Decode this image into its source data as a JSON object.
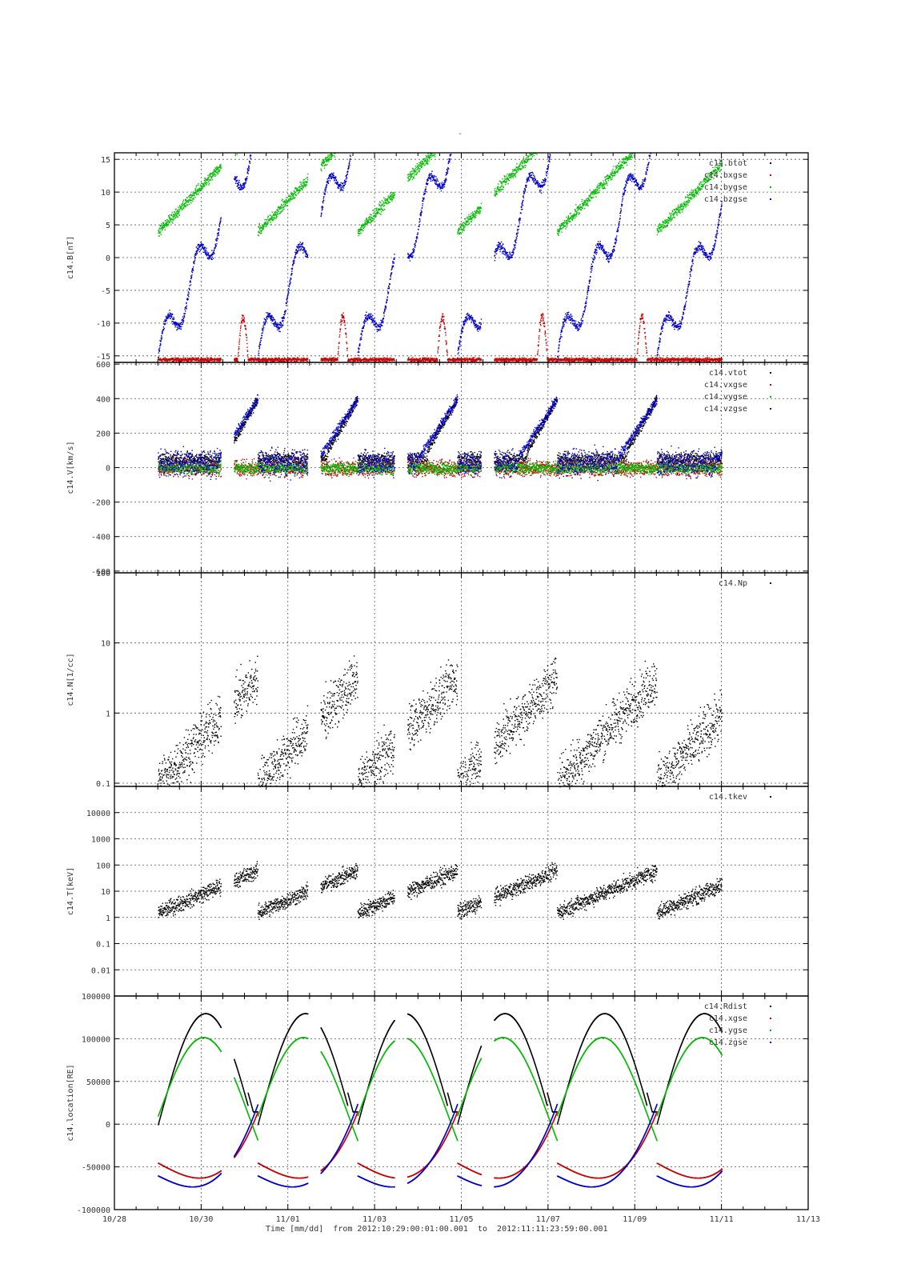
{
  "page_title": "-",
  "chart_data": {
    "type": "scatter",
    "x_axis": {
      "label": "Time [mm/dd]",
      "from_label": "from",
      "from": "2012:10:29:00:01:00.001",
      "to_label": "to",
      "to": "2012:11:11:23:59:00.001",
      "range": [
        "10/28",
        "11/13"
      ],
      "ticks": [
        "10/28",
        "10/30",
        "11/01",
        "11/03",
        "11/05",
        "11/07",
        "11/09",
        "11/11",
        "11/13"
      ]
    },
    "data_gaps": [
      [
        2.45,
        2.75
      ],
      [
        4.45,
        4.75
      ],
      [
        6.45,
        6.75
      ],
      [
        8.45,
        8.75
      ]
    ],
    "panels": [
      {
        "id": "B",
        "ylabel": "c14.B[nT]",
        "scale": "linear",
        "ylim": [
          -16,
          16
        ],
        "ticks": [
          15,
          10,
          5,
          0,
          -5,
          -10,
          -15
        ],
        "tick_labels": [
          "15",
          "10",
          "5",
          "0",
          "-5",
          "-10",
          "-15"
        ],
        "grid": true,
        "legend_position": "top-right",
        "series": [
          {
            "name": "c14.btot",
            "color": "#000000",
            "style": "dots"
          },
          {
            "name": "c14.bxgse",
            "color": "#cc0000",
            "style": "dots"
          },
          {
            "name": "c14.bygse",
            "color": "#00bb00",
            "style": "dots"
          },
          {
            "name": "c14.bzgse",
            "color": "#0000cc",
            "style": "dots"
          }
        ]
      },
      {
        "id": "V",
        "ylabel": "c14.V[km/s]",
        "scale": "linear",
        "ylim": [
          -610,
          610
        ],
        "ticks": [
          600,
          400,
          200,
          0,
          -200,
          -400,
          -600
        ],
        "tick_labels": [
          "600",
          "400",
          "200",
          "0",
          "-200",
          "-400",
          "-600"
        ],
        "grid": true,
        "legend_position": "top-right",
        "series": [
          {
            "name": "c14.vtot",
            "color": "#000000",
            "style": "dots"
          },
          {
            "name": "c14.vxgse",
            "color": "#cc0000",
            "style": "dots"
          },
          {
            "name": "c14.vygse",
            "color": "#00bb00",
            "style": "dots"
          },
          {
            "name": "c14.vzgse",
            "color": "#0000cc",
            "style": "dots"
          }
        ]
      },
      {
        "id": "N",
        "ylabel": "c14.N[1/cc]",
        "scale": "log",
        "ylim": [
          0.09,
          100
        ],
        "ticks": [
          100,
          10,
          1,
          0.1
        ],
        "tick_labels": [
          "100",
          "10",
          "1",
          "0.1"
        ],
        "grid": true,
        "legend_position": "top-right",
        "series": [
          {
            "name": "c14.Np",
            "color": "#000000",
            "style": "dots"
          }
        ]
      },
      {
        "id": "T",
        "ylabel": "c14.T[keV]",
        "scale": "log",
        "ylim": [
          0.001,
          100000
        ],
        "ticks": [
          10000,
          1000,
          100,
          10,
          1,
          0.1,
          0.01
        ],
        "tick_labels": [
          "10000",
          "1000",
          "100",
          "10",
          "1",
          "0.1",
          "0.01"
        ],
        "bottom_label": "100000",
        "grid": true,
        "legend_position": "top-right",
        "series": [
          {
            "name": "c14.tkev",
            "color": "#000000",
            "style": "dots"
          }
        ]
      },
      {
        "id": "loc",
        "ylabel": "c14.location[RE]",
        "scale": "linear",
        "ylim": [
          -100000,
          150000
        ],
        "ticks": [
          100000,
          50000,
          0,
          -50000,
          -100000
        ],
        "tick_labels": [
          "100000",
          "50000",
          "0",
          "-50000",
          "-100000"
        ],
        "grid": true,
        "legend_position": "top-right",
        "series": [
          {
            "name": "c14.Rdist",
            "color": "#000000",
            "style": "dots"
          },
          {
            "name": "c14.xgse",
            "color": "#cc0000",
            "style": "dots"
          },
          {
            "name": "c14.ygse",
            "color": "#00bb00",
            "style": "dots"
          },
          {
            "name": "c14.zgse",
            "color": "#0000cc",
            "style": "dots"
          }
        ]
      }
    ]
  }
}
